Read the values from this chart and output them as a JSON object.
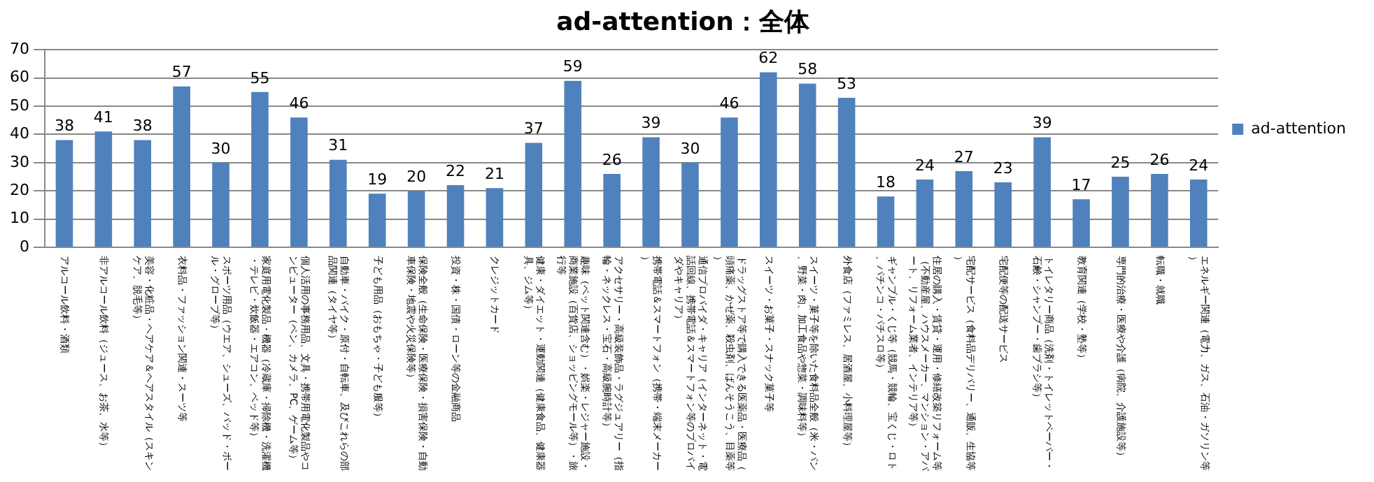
{
  "chart_data": {
    "type": "bar",
    "title": "ad-attention：全体",
    "categories": [
      "アルコール飲料・酒類",
      "非アルコール飲料（ジュース、お茶、水等）",
      "美容・化粧品・ヘアケア＆ヘアスタイル（スキンケア、脱毛等）",
      "衣料品・ファッション関連・スーツ等",
      "スポーツ用品（ウエア、シューズ、バッド・ボール・グローブ等）",
      "家庭用電化製品・機器（冷蔵庫・掃除機・洗濯機・テレビ・炊飯器・エアコン、ベッド等）",
      "個人活用の事務用品、文具・携帯用電化製品やコンピューター（ペン、カメラ、PC、ゲーム等）",
      "自動車・バイク・原付・自転車、及びこれらの部品関連（タイヤ等）",
      "子ども用品（おもちゃ・子ども服等）",
      "保険全般（生命保険・医療保険・損害保険・自動車保険・地震や火災保険等）",
      "投資・株・国債・ローン等の金融商品",
      "クレジットカード",
      "健康・ダイエット・運動関連（健康食品、健康器具、ジム等）",
      "趣味（ペット関連含む）・娯楽・レジャー施設・商業施設（百貨店、ショッピングモール等）・旅行等",
      "アクセサリー・高級装飾品・ラグジュアリー（指輪・ネックレス・宝石・高級腕時計等）",
      "携帯電話＆スマートフォン（携帯・端末メーカー）",
      "通信プロバイダ・キャリア（インターネット・電話回線、携帯電話＆スマートフォン等のプロバイダやキャリア）",
      "ドラッグストア等で購入できる医薬品・医療品（頭痛薬、かぜ薬、殺虫剤、ばんそうこう、目薬等）",
      "スイーツ・お菓子・スナック菓子等",
      "スイーツ・菓子等を除いた食料品全般（米・パン、野菜・肉、加工食品や惣菜・調味料等）",
      "外食店（ファミレス、居酒屋、小料理屋等）",
      "ギャンブル・くじ等（競馬・競輪、宝くじ・ロト、パチンコ・パチスロ等）",
      "住居の購入・賃貸・運用・修繕改築リフォーム等（不動産屋、ハウスメーカー、マンション・アパート、リフォーム業者、インテリア等）",
      "宅配サービス（食料品デリバリー、通販、生協等）",
      "宅配便等の配送サービス",
      "トイレタリー商品（洗剤・トイレットペーパー・石鹸・シャンプー・歯ブラシ等）",
      "教育関連（学校・塾等）",
      "専門的治療・医療や介護（病院、介護施設等）",
      "転職・就職",
      "エネルギー関連（電力、ガス、石油・ガソリン等）"
    ],
    "series": [
      {
        "name": "ad-attention",
        "color": "#4f81bd",
        "values": [
          38,
          41,
          38,
          57,
          30,
          55,
          46,
          31,
          19,
          20,
          22,
          21,
          37,
          59,
          26,
          39,
          30,
          46,
          62,
          58,
          53,
          18,
          24,
          27,
          23,
          39,
          17,
          25,
          26,
          24
        ]
      }
    ],
    "ylim": [
      0,
      70
    ],
    "yticks": [
      0,
      10,
      20,
      30,
      40,
      50,
      60,
      70
    ],
    "grid": "y",
    "legend": "right",
    "data_labels": true
  }
}
